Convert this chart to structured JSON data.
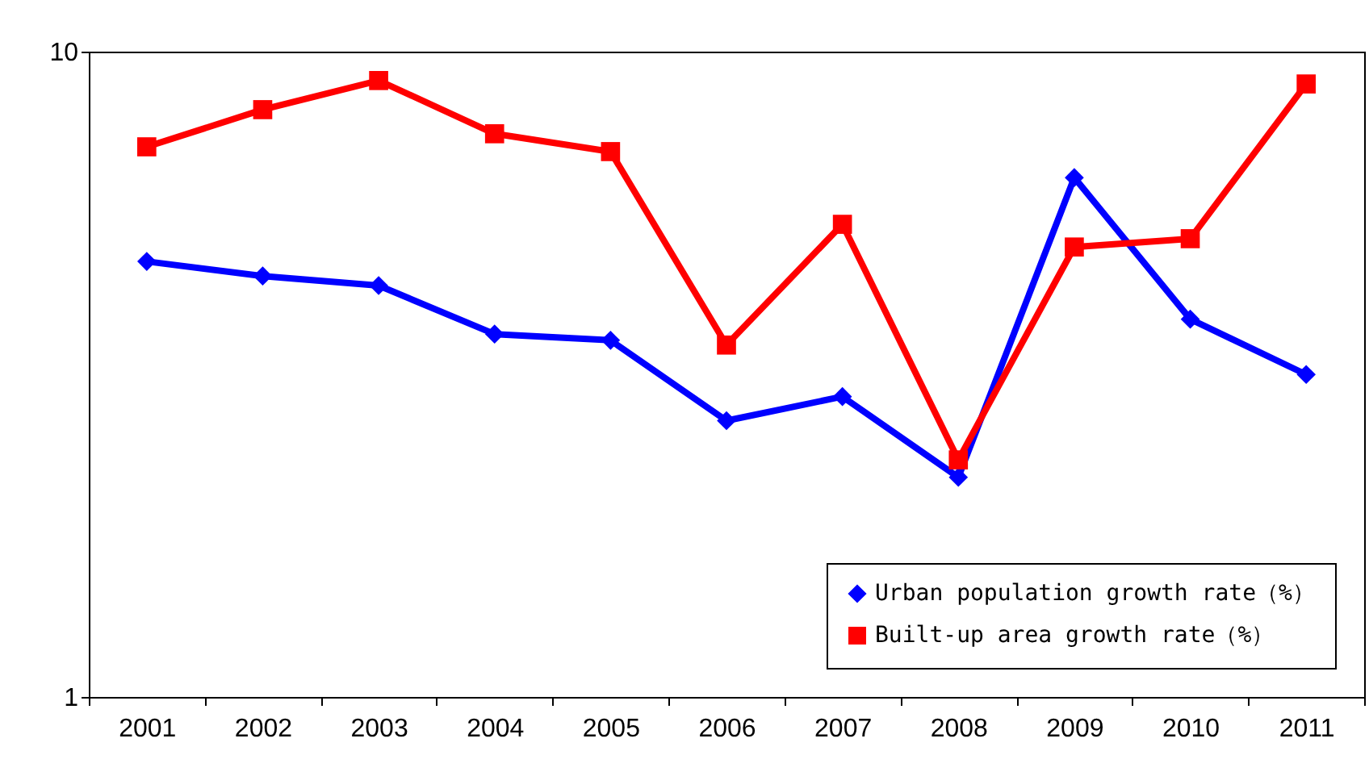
{
  "chart_data": {
    "type": "line",
    "categories": [
      "2001",
      "2002",
      "2003",
      "2004",
      "2005",
      "2006",
      "2007",
      "2008",
      "2009",
      "2010",
      "2011"
    ],
    "series": [
      {
        "name": "Urban population growth rate（%）",
        "color": "#0000ff",
        "marker": "diamond",
        "values": [
          4.73,
          4.49,
          4.34,
          3.65,
          3.57,
          2.68,
          2.92,
          2.19,
          6.38,
          3.85,
          3.16
        ]
      },
      {
        "name": "Built-up area growth rate（%）",
        "color": "#ff0000",
        "marker": "square",
        "values": [
          7.12,
          8.13,
          9.02,
          7.46,
          7.0,
          3.51,
          5.4,
          2.33,
          4.98,
          5.13,
          8.91
        ]
      }
    ],
    "log": "y",
    "ylim": [
      1,
      10
    ],
    "yticks": [
      1,
      10
    ],
    "grid": false,
    "legend": "bottom right",
    "line_style": "solid"
  }
}
